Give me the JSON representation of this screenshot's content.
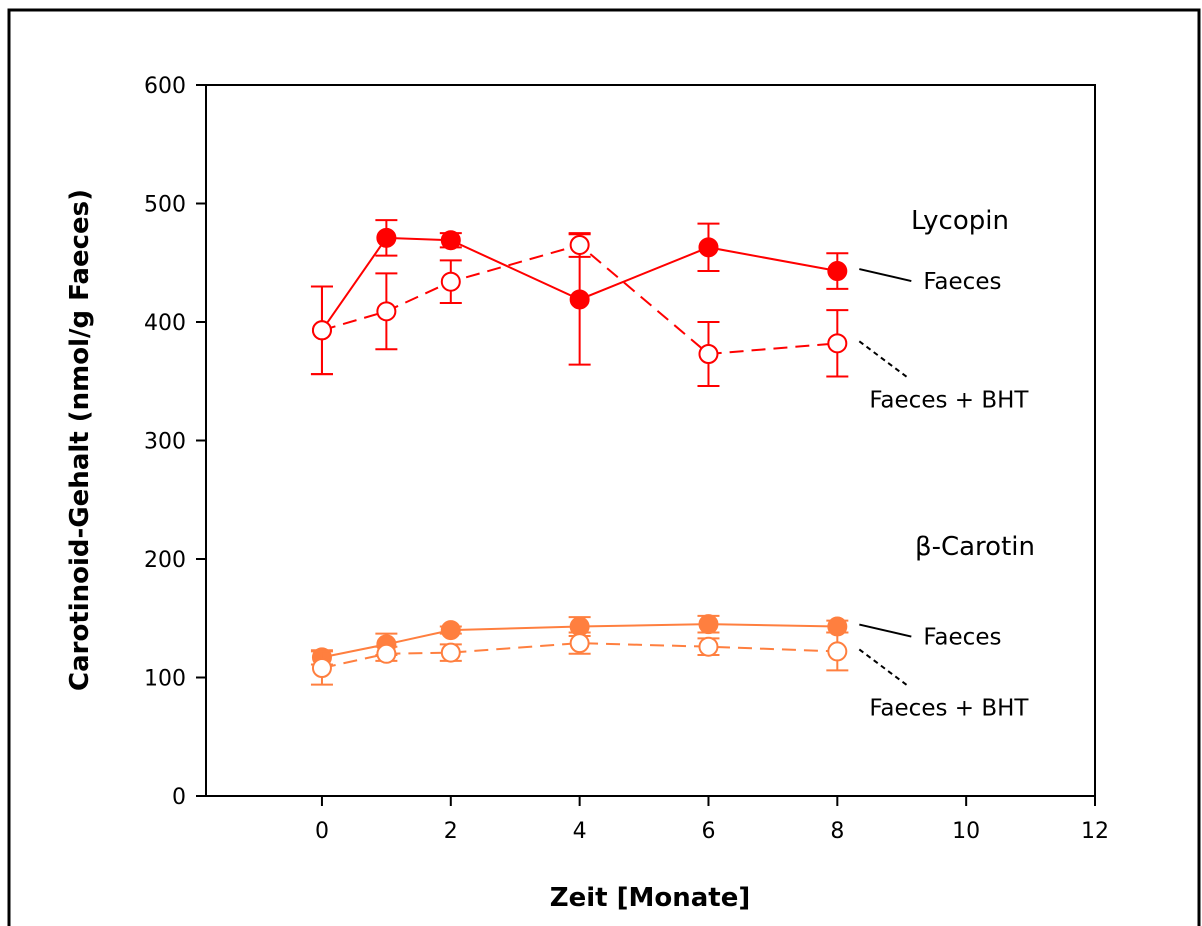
{
  "chart_data": {
    "type": "line",
    "xlabel": "Zeit [Monate]",
    "ylabel": "Carotinoid-Gehalt (nmol/g Faeces)",
    "xlim": [
      -1.8,
      12
    ],
    "ylim": [
      0,
      600
    ],
    "xticks": [
      0,
      2,
      4,
      6,
      8,
      10,
      12
    ],
    "yticks": [
      0,
      100,
      200,
      300,
      400,
      500,
      600
    ],
    "grid": false,
    "colors": {
      "lycopin": "#ff0000",
      "carotin": "#ff7f3f"
    },
    "group_labels": {
      "lycopin": "Lycopin",
      "carotin": "β-Carotin"
    },
    "series": [
      {
        "group": "lycopin",
        "label": "Faeces",
        "filled": true,
        "dashed": false,
        "x": [
          0,
          1,
          2,
          4,
          6,
          8
        ],
        "y": [
          393,
          471,
          469,
          419,
          463,
          443
        ],
        "err": [
          37,
          15,
          6,
          55,
          20,
          15
        ]
      },
      {
        "group": "lycopin",
        "label": "Faeces + BHT",
        "filled": false,
        "dashed": true,
        "x": [
          0,
          1,
          2,
          4,
          6,
          8
        ],
        "y": [
          393,
          409,
          434,
          465,
          373,
          382
        ],
        "err": [
          37,
          32,
          18,
          10,
          27,
          28
        ]
      },
      {
        "group": "carotin",
        "label": "Faeces",
        "filled": true,
        "dashed": false,
        "x": [
          0,
          1,
          2,
          4,
          6,
          8
        ],
        "y": [
          117,
          128,
          140,
          143,
          145,
          143
        ],
        "err": [
          6,
          9,
          3,
          8,
          7,
          5
        ]
      },
      {
        "group": "carotin",
        "label": "Faeces + BHT",
        "filled": false,
        "dashed": true,
        "x": [
          0,
          1,
          2,
          4,
          6,
          8
        ],
        "y": [
          108,
          120,
          121,
          129,
          126,
          122
        ],
        "err": [
          14,
          6,
          7,
          9,
          7,
          16
        ]
      }
    ]
  }
}
